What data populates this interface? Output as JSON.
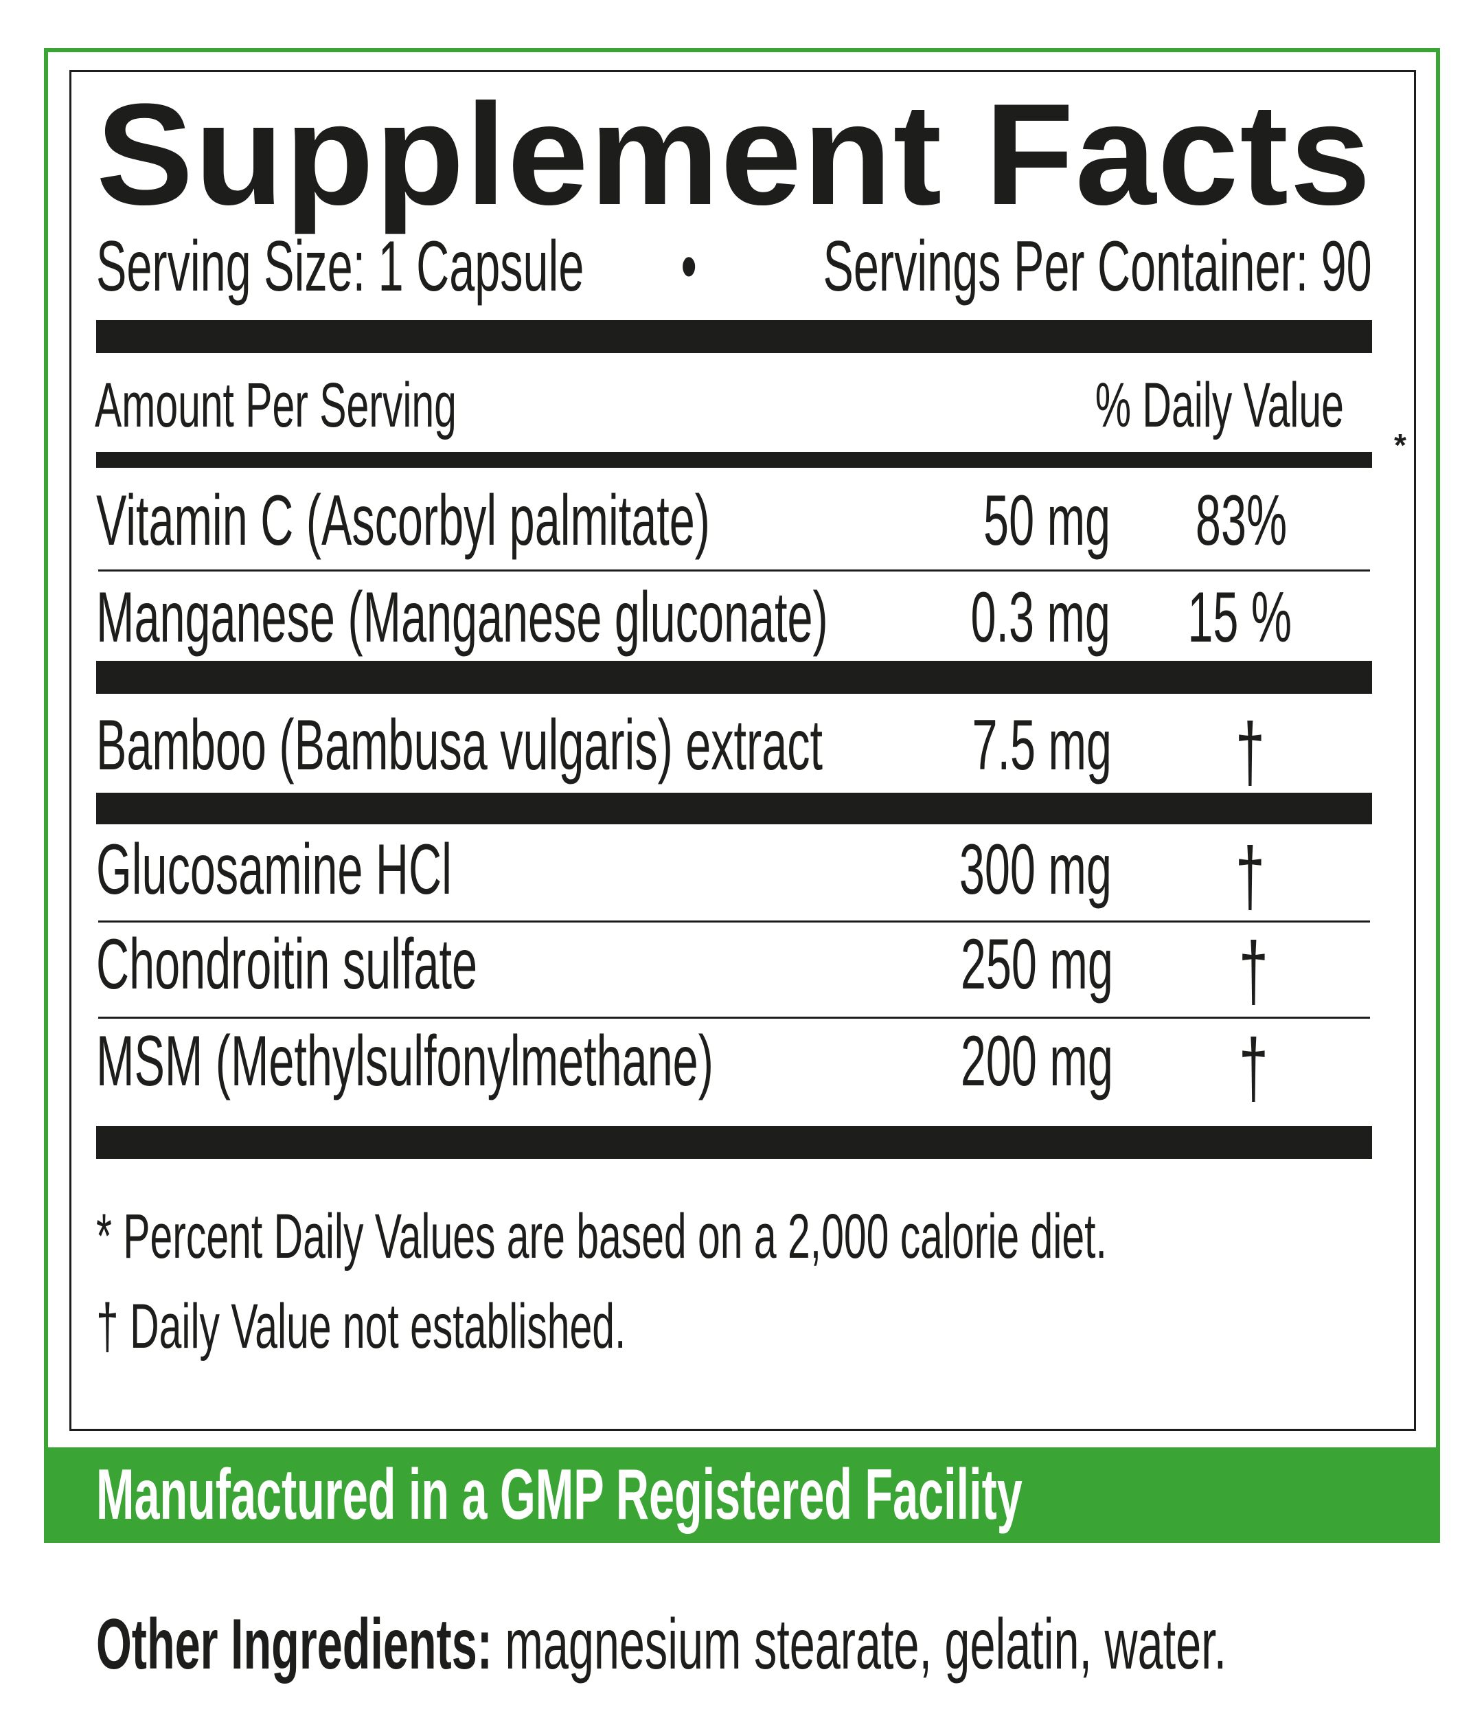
{
  "title": "Supplement Facts",
  "serving": {
    "size": "Serving Size: 1 Capsule",
    "bullet": "•",
    "per_container": "Servings Per Container: 90"
  },
  "header": {
    "amount": "Amount Per Serving",
    "daily_value": "% Daily Value",
    "asterisk": "*"
  },
  "rows": [
    {
      "name": "Vitamin C (Ascorbyl palmitate)",
      "amount": "50 mg",
      "dv": "83%"
    },
    {
      "name": "Manganese (Manganese gluconate)",
      "amount": "0.3 mg",
      "dv": "15 %"
    },
    {
      "name": "Bamboo (Bambusa vulgaris) extract",
      "amount": "7.5 mg",
      "dv": "†"
    },
    {
      "name": "Glucosamine HCl",
      "amount": "300 mg",
      "dv": "†"
    },
    {
      "name": "Chondroitin sulfate",
      "amount": "250 mg",
      "dv": "†"
    },
    {
      "name": "MSM (Methylsulfonylmethane)",
      "amount": "200 mg",
      "dv": "†"
    }
  ],
  "footnotes": {
    "percent": "* Percent Daily Values are based on a 2,000 calorie diet.",
    "dagger": "† Daily Value not established."
  },
  "banner": "Manufactured in a GMP Registered Facility",
  "other_ingredients": {
    "label": "Other Ingredients:",
    "value": " magnesium stearate, gelatin, water."
  },
  "colors": {
    "accent": "#3aa535",
    "ink": "#1d1d1b"
  }
}
